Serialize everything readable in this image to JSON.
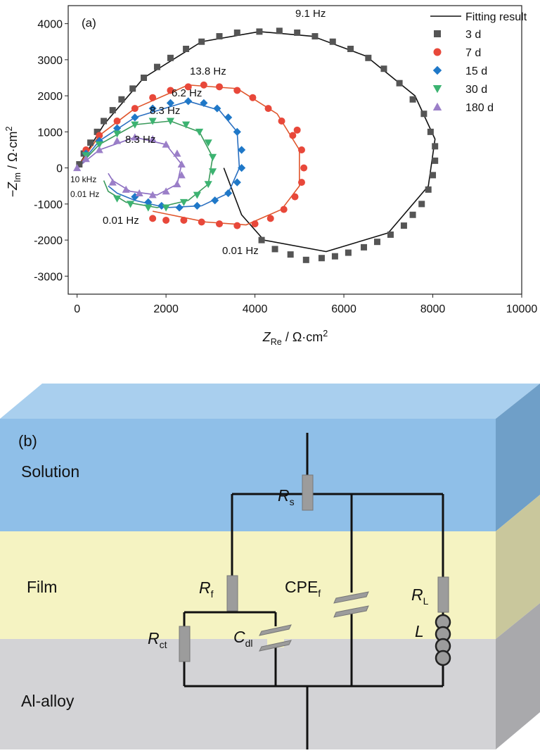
{
  "chart_data": {
    "type": "scatter",
    "panel_label": "(a)",
    "x_label": {
      "main": "Z",
      "sub": "Re",
      "unit": " / Ω·cm",
      "sup": "2"
    },
    "y_label": {
      "main": "−Z",
      "sub": "Im",
      "unit": " / Ω·cm",
      "sup": "2"
    },
    "xlim": [
      -200,
      10000
    ],
    "ylim": [
      -3500,
      4500
    ],
    "xticks": [
      0,
      2000,
      4000,
      6000,
      8000,
      10000
    ],
    "yticks": [
      -3000,
      -2000,
      -1000,
      0,
      1000,
      2000,
      3000,
      4000
    ],
    "legend": "upper right",
    "fit_name": "Fitting result",
    "annotations": [
      "9.1 Hz",
      "13.8 Hz",
      "6.2 Hz",
      "8.3 Hz",
      "8.3 Hz",
      "10 kHz",
      "0.01 Hz",
      "0.01 Hz",
      "0.01 Hz"
    ],
    "series": [
      {
        "name": "3 d",
        "color": "#555555",
        "marker": "square",
        "x": [
          50,
          150,
          300,
          450,
          600,
          800,
          1000,
          1250,
          1500,
          1800,
          2100,
          2450,
          2800,
          3200,
          3600,
          4100,
          4550,
          4950,
          5350,
          5750,
          6150,
          6550,
          6900,
          7250,
          7550,
          7800,
          7950,
          8050,
          8050,
          8000,
          7900,
          7750,
          7550,
          7350,
          7050,
          6750,
          6450,
          6100,
          5800,
          5500,
          5150,
          4800,
          4450,
          4150
        ],
        "y": [
          100,
          400,
          700,
          1000,
          1300,
          1600,
          1900,
          2200,
          2500,
          2800,
          3050,
          3300,
          3500,
          3650,
          3750,
          3780,
          3800,
          3750,
          3650,
          3500,
          3300,
          3050,
          2750,
          2350,
          1900,
          1500,
          1000,
          600,
          200,
          -200,
          -600,
          -1000,
          -1300,
          -1600,
          -1850,
          -2050,
          -2200,
          -2350,
          -2450,
          -2500,
          -2550,
          -2400,
          -2250,
          -2000
        ]
      },
      {
        "name": "7 d",
        "color": "#e8483a",
        "marker": "circle",
        "x": [
          200,
          500,
          900,
          1300,
          1700,
          2100,
          2500,
          2850,
          3200,
          3600,
          3950,
          4300,
          4600,
          4850,
          4950,
          5050,
          5100,
          5050,
          4900,
          4650,
          4350,
          4000,
          3600,
          3200,
          2800,
          2400,
          2000,
          1700
        ],
        "y": [
          500,
          900,
          1300,
          1650,
          1950,
          2150,
          2250,
          2300,
          2250,
          2150,
          1950,
          1650,
          1300,
          900,
          1050,
          500,
          0,
          -400,
          -800,
          -1150,
          -1400,
          -1550,
          -1600,
          -1550,
          -1500,
          -1450,
          -1450,
          -1400
        ]
      },
      {
        "name": "15 d",
        "color": "#1f78c8",
        "marker": "diamond",
        "x": [
          200,
          500,
          900,
          1300,
          1700,
          2100,
          2500,
          2850,
          3150,
          3400,
          3600,
          3700,
          3700,
          3600,
          3400,
          3100,
          2700,
          2300,
          1900,
          1600,
          1300
        ],
        "y": [
          400,
          750,
          1100,
          1400,
          1650,
          1800,
          1850,
          1800,
          1650,
          1400,
          1000,
          500,
          0,
          -400,
          -700,
          -900,
          -1050,
          -1100,
          -1050,
          -950,
          -800
        ]
      },
      {
        "name": "30 d",
        "color": "#3cb371",
        "marker": "tri-down",
        "x": [
          200,
          500,
          900,
          1300,
          1700,
          2100,
          2450,
          2750,
          2950,
          3050,
          3050,
          2950,
          2700,
          2400,
          2000,
          1600,
          1200,
          900
        ],
        "y": [
          350,
          650,
          950,
          1200,
          1300,
          1300,
          1200,
          1000,
          700,
          300,
          -100,
          -450,
          -750,
          -950,
          -1100,
          -1100,
          -1000,
          -850
        ]
      },
      {
        "name": "180 d",
        "color": "#9b7fc8",
        "marker": "tri-up",
        "x": [
          0,
          200,
          500,
          900,
          1300,
          1700,
          2000,
          2250,
          2350,
          2350,
          2250,
          2000,
          1700,
          1400,
          1100,
          800
        ],
        "y": [
          0,
          250,
          500,
          750,
          850,
          800,
          650,
          400,
          100,
          -200,
          -450,
          -650,
          -750,
          -700,
          -600,
          -400
        ]
      }
    ],
    "fits": [
      {
        "color": "#111111",
        "x": [
          0,
          600,
          1500,
          2800,
          4100,
          5300,
          6500,
          7600,
          8050,
          7900,
          7000,
          5600,
          4200,
          3700,
          3300
        ],
        "y": [
          0,
          1200,
          2500,
          3500,
          3780,
          3650,
          3100,
          2000,
          800,
          -500,
          -1800,
          -2320,
          -2000,
          -1300,
          0
        ]
      },
      {
        "color": "#e0552b",
        "x": [
          0,
          500,
          1300,
          2500,
          3600,
          4500,
          5000,
          5000,
          4600,
          3800,
          2900,
          2100,
          1700
        ],
        "y": [
          0,
          900,
          1650,
          2300,
          2200,
          1500,
          500,
          -500,
          -1150,
          -1580,
          -1500,
          -1300,
          -1200
        ]
      },
      {
        "color": "#2a6fc0",
        "x": [
          0,
          500,
          1300,
          2500,
          3200,
          3600,
          3650,
          3400,
          2800,
          2000,
          1300,
          900,
          700
        ],
        "y": [
          0,
          750,
          1400,
          1850,
          1600,
          1000,
          0,
          -700,
          -1050,
          -1100,
          -900,
          -700,
          -500
        ]
      },
      {
        "color": "#3a9a5b",
        "x": [
          0,
          500,
          1300,
          2100,
          2750,
          3050,
          2950,
          2500,
          1800,
          1100,
          700,
          600
        ],
        "y": [
          0,
          650,
          1200,
          1300,
          1000,
          300,
          -450,
          -900,
          -1100,
          -950,
          -650,
          -350
        ]
      },
      {
        "color": "#8a6cc0",
        "x": [
          0,
          500,
          1300,
          2000,
          2350,
          2250,
          1800,
          1200,
          800,
          700
        ],
        "y": [
          0,
          500,
          850,
          650,
          100,
          -450,
          -750,
          -650,
          -350,
          -150
        ]
      }
    ]
  },
  "diagram": {
    "label": "(b)",
    "layers": [
      "Solution",
      "Film",
      "Al-alloy"
    ],
    "elements": [
      {
        "main": "R",
        "sub": "s"
      },
      {
        "main": "R",
        "sub": "f"
      },
      {
        "main": "R",
        "sub": "ct"
      },
      {
        "main": "C",
        "sub": "dl"
      },
      {
        "main": "CPE",
        "sub": "f"
      },
      {
        "main": "R",
        "sub": "L"
      },
      {
        "main": "L",
        "sub": ""
      }
    ]
  }
}
